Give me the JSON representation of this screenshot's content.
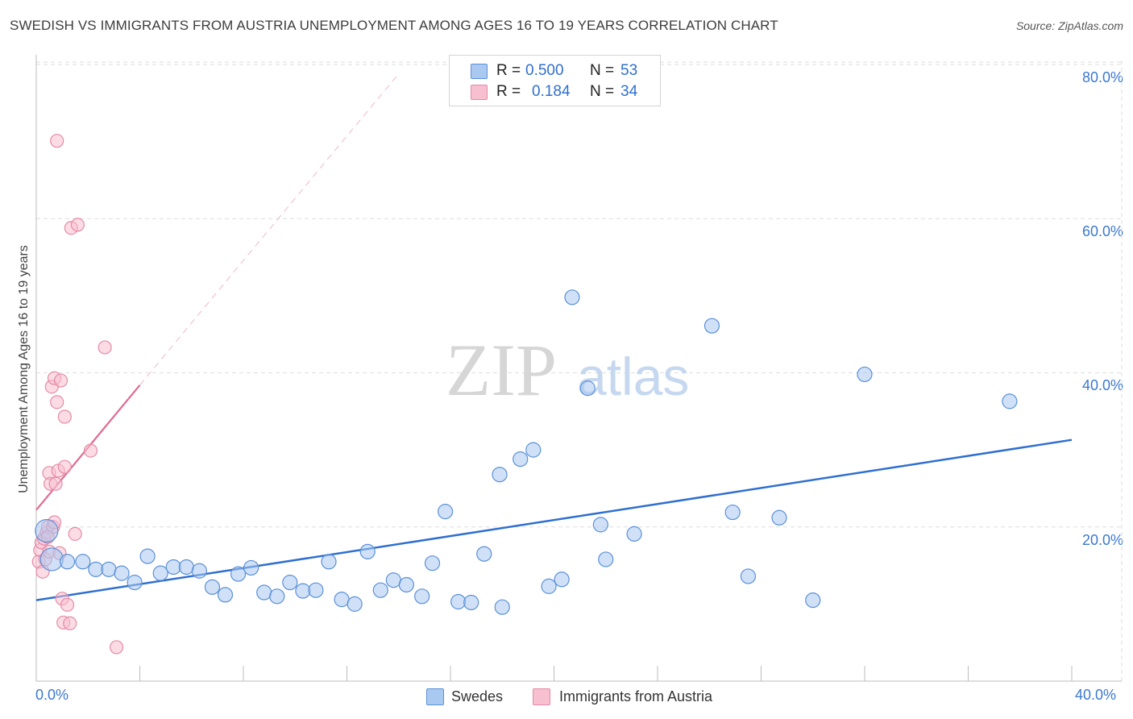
{
  "chart_data": {
    "type": "scatter",
    "title": "SWEDISH VS IMMIGRANTS FROM AUSTRIA UNEMPLOYMENT AMONG AGES 16 TO 19 YEARS CORRELATION CHART",
    "source": "Source: ZipAtlas.com",
    "ylabel": "Unemployment Among Ages 16 to 19 years",
    "xlabel": "",
    "xlim": [
      0,
      40
    ],
    "ylim": [
      0,
      80
    ],
    "x_tick_labels": [
      "0.0%",
      "40.0%"
    ],
    "y_tick_labels": [
      "20.0%",
      "40.0%",
      "60.0%",
      "80.0%"
    ],
    "y_tick_values": [
      20,
      40,
      60,
      80
    ],
    "grid": true,
    "watermark": "ZIPatlas",
    "colors": {
      "swedes_fill": "#aac9f0",
      "swedes_stroke": "#5b90d8",
      "swedes_line": "#2f6fd0",
      "austria_fill": "#f7bfd0",
      "austria_stroke": "#e58aa6",
      "austria_line": "#e06a92"
    },
    "stats": [
      {
        "r_label": "R =",
        "r_value": "0.500",
        "n_label": "N =",
        "n_value": "53"
      },
      {
        "r_label": "R =",
        "r_value": "0.184",
        "n_label": "N =",
        "n_value": "34"
      }
    ],
    "legend": [
      "Swedes",
      "Immigrants from Austria"
    ],
    "series": [
      {
        "name": "Swedes",
        "trend": {
          "x0": 0,
          "y0": 10.5,
          "x1": 40,
          "y1": 31.3
        },
        "points": [
          {
            "x": 0.4,
            "y": 19.5,
            "big": true
          },
          {
            "x": 0.6,
            "y": 15.8,
            "big": true
          },
          {
            "x": 1.2,
            "y": 15.5
          },
          {
            "x": 1.8,
            "y": 15.5
          },
          {
            "x": 2.3,
            "y": 14.5
          },
          {
            "x": 2.8,
            "y": 14.5
          },
          {
            "x": 3.3,
            "y": 14.0
          },
          {
            "x": 3.8,
            "y": 12.8
          },
          {
            "x": 4.3,
            "y": 16.2
          },
          {
            "x": 4.8,
            "y": 14.0
          },
          {
            "x": 5.3,
            "y": 14.8
          },
          {
            "x": 5.8,
            "y": 14.8
          },
          {
            "x": 6.3,
            "y": 14.3
          },
          {
            "x": 6.8,
            "y": 12.2
          },
          {
            "x": 7.3,
            "y": 11.2
          },
          {
            "x": 7.8,
            "y": 13.9
          },
          {
            "x": 8.3,
            "y": 14.7
          },
          {
            "x": 8.8,
            "y": 11.5
          },
          {
            "x": 9.3,
            "y": 11.0
          },
          {
            "x": 9.8,
            "y": 12.8
          },
          {
            "x": 10.3,
            "y": 11.7
          },
          {
            "x": 10.8,
            "y": 11.8
          },
          {
            "x": 11.3,
            "y": 15.5
          },
          {
            "x": 11.8,
            "y": 10.6
          },
          {
            "x": 12.3,
            "y": 10.0
          },
          {
            "x": 12.8,
            "y": 16.8
          },
          {
            "x": 13.3,
            "y": 11.8
          },
          {
            "x": 13.8,
            "y": 13.1
          },
          {
            "x": 14.3,
            "y": 12.5
          },
          {
            "x": 14.9,
            "y": 11.0
          },
          {
            "x": 15.3,
            "y": 15.3
          },
          {
            "x": 15.8,
            "y": 22.0
          },
          {
            "x": 16.3,
            "y": 10.3
          },
          {
            "x": 16.8,
            "y": 10.2
          },
          {
            "x": 17.3,
            "y": 16.5
          },
          {
            "x": 17.9,
            "y": 26.8
          },
          {
            "x": 18.0,
            "y": 9.6
          },
          {
            "x": 18.7,
            "y": 28.8
          },
          {
            "x": 19.2,
            "y": 30.0
          },
          {
            "x": 19.8,
            "y": 12.3
          },
          {
            "x": 20.3,
            "y": 13.2
          },
          {
            "x": 20.7,
            "y": 49.8
          },
          {
            "x": 21.3,
            "y": 38.0
          },
          {
            "x": 21.8,
            "y": 20.3
          },
          {
            "x": 22.0,
            "y": 15.8
          },
          {
            "x": 23.1,
            "y": 19.1
          },
          {
            "x": 26.1,
            "y": 46.1
          },
          {
            "x": 26.9,
            "y": 21.9
          },
          {
            "x": 27.5,
            "y": 13.6
          },
          {
            "x": 28.7,
            "y": 21.2
          },
          {
            "x": 30.0,
            "y": 10.5
          },
          {
            "x": 32.0,
            "y": 39.8
          },
          {
            "x": 37.6,
            "y": 36.3
          }
        ]
      },
      {
        "name": "Immigrants from Austria",
        "trend": {
          "x0": 0,
          "y0": 22.2,
          "x1": 4.0,
          "y1": 38.4
        },
        "trend_extension": {
          "x0": 4.0,
          "y0": 38.4,
          "x1": 14.0,
          "y1": 78.8
        },
        "points": [
          {
            "x": 0.1,
            "y": 15.5
          },
          {
            "x": 0.15,
            "y": 17.0
          },
          {
            "x": 0.2,
            "y": 18.0
          },
          {
            "x": 0.25,
            "y": 14.2
          },
          {
            "x": 0.3,
            "y": 18.5
          },
          {
            "x": 0.35,
            "y": 15.8
          },
          {
            "x": 0.4,
            "y": 19.3
          },
          {
            "x": 0.45,
            "y": 20.0
          },
          {
            "x": 0.5,
            "y": 27.0
          },
          {
            "x": 0.5,
            "y": 16.8
          },
          {
            "x": 0.55,
            "y": 25.6
          },
          {
            "x": 0.6,
            "y": 38.2
          },
          {
            "x": 0.65,
            "y": 20.0
          },
          {
            "x": 0.7,
            "y": 20.6
          },
          {
            "x": 0.7,
            "y": 39.3
          },
          {
            "x": 0.75,
            "y": 25.6
          },
          {
            "x": 0.8,
            "y": 36.2
          },
          {
            "x": 0.8,
            "y": 70.1
          },
          {
            "x": 0.85,
            "y": 27.3
          },
          {
            "x": 0.9,
            "y": 16.6
          },
          {
            "x": 0.95,
            "y": 39.0
          },
          {
            "x": 1.0,
            "y": 10.7
          },
          {
            "x": 1.05,
            "y": 7.6
          },
          {
            "x": 1.1,
            "y": 34.3
          },
          {
            "x": 1.1,
            "y": 27.8
          },
          {
            "x": 1.2,
            "y": 9.9
          },
          {
            "x": 1.3,
            "y": 7.5
          },
          {
            "x": 1.35,
            "y": 58.8
          },
          {
            "x": 1.5,
            "y": 19.1
          },
          {
            "x": 1.6,
            "y": 59.2
          },
          {
            "x": 2.1,
            "y": 29.9
          },
          {
            "x": 2.65,
            "y": 43.3
          },
          {
            "x": 3.1,
            "y": 4.4
          },
          {
            "x": 0.45,
            "y": 18.7
          }
        ]
      }
    ]
  }
}
